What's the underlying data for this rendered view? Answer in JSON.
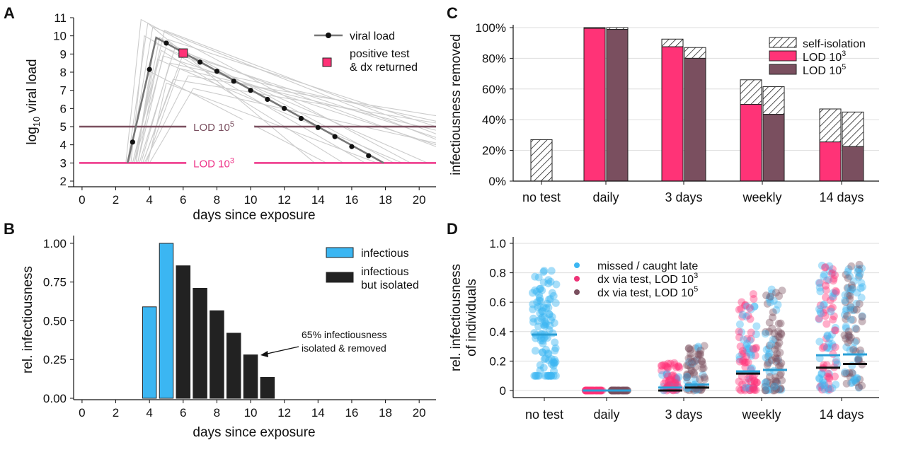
{
  "colors": {
    "pink": "#ff3377",
    "mauve": "#7a4f5f",
    "sky": "#3bb6f2",
    "black": "#222222",
    "gray": "#777777",
    "light_gray": "#cccccc",
    "lod5_line": "#7a4f5f",
    "lod3_line": "#ee3388"
  },
  "chart_data": [
    {
      "panel": "A",
      "type": "line",
      "xlabel": "days since exposure",
      "ylabel_main": "log",
      "ylabel_sub": "10",
      "ylabel_rest": " viral load",
      "xlim": [
        -0.5,
        21
      ],
      "ylim": [
        2,
        11
      ],
      "xticks": [
        0,
        2,
        4,
        6,
        8,
        10,
        12,
        14,
        16,
        18,
        20
      ],
      "yticks": [
        2,
        3,
        4,
        5,
        6,
        7,
        8,
        9,
        10,
        11
      ],
      "hlines": [
        {
          "y": 5,
          "label_main": "LOD 10",
          "label_sup": "5",
          "color": "#7a4f5f"
        },
        {
          "y": 3,
          "label_main": "LOD 10",
          "label_sup": "3",
          "color": "#ee3388"
        }
      ],
      "trajectory": {
        "x": [
          2.7,
          4.4,
          17.9
        ],
        "y": [
          3,
          9.9,
          3
        ]
      },
      "samples": {
        "x": [
          3,
          4,
          5,
          6,
          7,
          8,
          9,
          10,
          11,
          12,
          13,
          14,
          15,
          16,
          17
        ],
        "y": [
          4.15,
          8.15,
          9.6,
          9.05,
          8.55,
          8.05,
          7.5,
          7.0,
          6.5,
          6.0,
          5.45,
          4.95,
          4.45,
          3.9,
          3.4
        ]
      },
      "positive_test": {
        "x": 6,
        "y": 9.05
      },
      "background_traj": [
        [
          2.6,
          3,
          3.5,
          10.9,
          19.5,
          3
        ],
        [
          2.8,
          3,
          4.2,
          10.5,
          21,
          4.3
        ],
        [
          3.0,
          3,
          4.9,
          10.3,
          21,
          4.6
        ],
        [
          2.9,
          3,
          3.7,
          10.0,
          16.8,
          3
        ],
        [
          3.1,
          3,
          5.1,
          9.8,
          21,
          5.0
        ],
        [
          3.2,
          3,
          4.3,
          9.6,
          20.5,
          3
        ],
        [
          3.4,
          3,
          5.5,
          9.3,
          21,
          3.9
        ],
        [
          3.0,
          3,
          4.7,
          9.2,
          15.5,
          3
        ],
        [
          3.6,
          3,
          6.0,
          9.0,
          21,
          4.4
        ],
        [
          3.3,
          3,
          4.5,
          8.7,
          19.0,
          3
        ],
        [
          3.5,
          3,
          5.2,
          8.5,
          21,
          5.3
        ],
        [
          3.8,
          3,
          5.8,
          8.2,
          21,
          4.8
        ],
        [
          3.2,
          3,
          4.1,
          8.0,
          14.5,
          3
        ],
        [
          3.7,
          3,
          6.3,
          7.8,
          21,
          5.6
        ],
        [
          3.9,
          3,
          5.0,
          7.4,
          17.5,
          3
        ],
        [
          2.7,
          3,
          3.9,
          10.7,
          13.8,
          3
        ],
        [
          4.0,
          3,
          6.6,
          7.1,
          21,
          4.1
        ],
        [
          3.1,
          3,
          4.6,
          9.9,
          18.5,
          3
        ],
        [
          3.6,
          3,
          5.4,
          7.6,
          21,
          5.2
        ],
        [
          3.3,
          3,
          4.8,
          8.9,
          21,
          4.0
        ]
      ],
      "legend": {
        "line_label": "viral load",
        "test_label_1": "positive test",
        "test_label_2": "& dx returned"
      }
    },
    {
      "panel": "B",
      "type": "bar",
      "xlabel": "days since exposure",
      "ylabel": "rel. infectiousness",
      "xlim": [
        -0.5,
        21
      ],
      "ylim": [
        0,
        1.05
      ],
      "xticks": [
        0,
        2,
        4,
        6,
        8,
        10,
        12,
        14,
        16,
        18,
        20
      ],
      "yticks": [
        0,
        0.25,
        0.5,
        0.75,
        1.0
      ],
      "ytick_labels": [
        "0.00",
        "0.25",
        "0.50",
        "0.75",
        "1.00"
      ],
      "bars": [
        {
          "day": 4,
          "value": 0.59,
          "type": "infectious"
        },
        {
          "day": 5,
          "value": 1.0,
          "type": "infectious"
        },
        {
          "day": 6,
          "value": 0.855,
          "type": "isolated"
        },
        {
          "day": 7,
          "value": 0.71,
          "type": "isolated"
        },
        {
          "day": 8,
          "value": 0.565,
          "type": "isolated"
        },
        {
          "day": 9,
          "value": 0.42,
          "type": "isolated"
        },
        {
          "day": 10,
          "value": 0.28,
          "type": "isolated"
        },
        {
          "day": 11,
          "value": 0.135,
          "type": "isolated"
        }
      ],
      "legend": {
        "infectious": "infectious",
        "isolated_1": "infectious",
        "isolated_2": "but isolated"
      },
      "annotation": {
        "line1": "65% infectiousness",
        "line2": "isolated & removed"
      }
    },
    {
      "panel": "C",
      "type": "bar",
      "ylabel": "infectiousness removed",
      "categories": [
        "no test",
        "daily",
        "3 days",
        "weekly",
        "14 days"
      ],
      "yticks": [
        0,
        20,
        40,
        60,
        80,
        100
      ],
      "ytick_labels": [
        "0%",
        "20%",
        "40%",
        "60%",
        "80%",
        "100%"
      ],
      "ylim": [
        0,
        100
      ],
      "series": [
        {
          "name": "LOD 10^3",
          "lod": [
            null,
            99.5,
            87.5,
            50,
            25.5
          ],
          "total": [
            null,
            100,
            92.5,
            66,
            47
          ]
        },
        {
          "name": "LOD 10^5",
          "lod": [
            null,
            98.8,
            80,
            43.5,
            22.5
          ],
          "total": [
            null,
            100,
            87,
            61.5,
            45
          ]
        }
      ],
      "no_test_selfiso": 27,
      "legend": {
        "selfiso": "self-isolation",
        "lod3_main": "LOD 10",
        "lod3_sup": "3",
        "lod5_main": "LOD 10",
        "lod5_sup": "5"
      }
    },
    {
      "panel": "D",
      "type": "scatter",
      "ylabel_1": "rel. infectiousness",
      "ylabel_2": "of individuals",
      "categories": [
        "no test",
        "daily",
        "3 days",
        "weekly",
        "14 days"
      ],
      "yticks": [
        0,
        0.2,
        0.4,
        0.6,
        0.8,
        1.0
      ],
      "ytick_labels": [
        "0",
        "0.2",
        "0.4",
        "0.6",
        "0.8",
        "1.0"
      ],
      "ylim": [
        -0.05,
        1.0
      ],
      "means_missed": [
        0.38,
        0.0,
        0.02,
        0.13,
        0.24,
        0.0,
        0.0,
        0.04,
        0.14,
        0.245
      ],
      "means_total": [
        null,
        0.0,
        0.0,
        0.115,
        0.155,
        0.0,
        0.0,
        0.02,
        0.14,
        0.18
      ],
      "legend": {
        "missed": "missed / caught late",
        "lod3_main": "dx via test, LOD 10",
        "lod3_sup": "3",
        "lod5_main": "dx via test, LOD 10",
        "lod5_sup": "5"
      }
    }
  ],
  "panel_labels": [
    "A",
    "B",
    "C",
    "D"
  ]
}
